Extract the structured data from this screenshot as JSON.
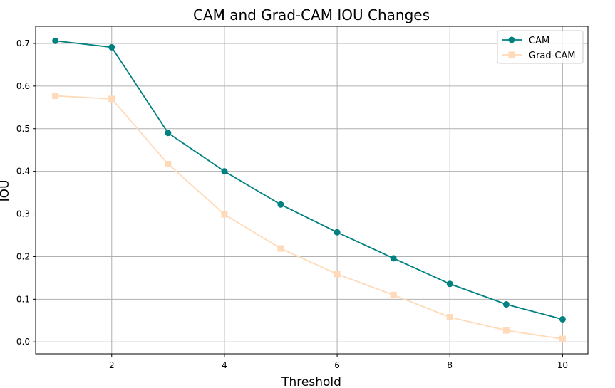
{
  "chart_data": {
    "type": "line",
    "title": "CAM and Grad-CAM IOU Changes",
    "xlabel": "Threshold",
    "ylabel": "IOU",
    "x": [
      1,
      2,
      3,
      4,
      5,
      6,
      7,
      8,
      9,
      10
    ],
    "xlim": [
      0.65,
      10.45
    ],
    "ylim": [
      -0.028,
      0.74
    ],
    "xticks": [
      2,
      4,
      6,
      8,
      10
    ],
    "yticks": [
      0.0,
      0.1,
      0.2,
      0.3,
      0.4,
      0.5,
      0.6,
      0.7
    ],
    "ytick_labels": [
      "0.0",
      "0.1",
      "0.2",
      "0.3",
      "0.4",
      "0.5",
      "0.6",
      "0.7"
    ],
    "grid": true,
    "legend_position": "top-right",
    "series": [
      {
        "name": "CAM",
        "color": "#008080",
        "marker": "circle",
        "values": [
          0.706,
          0.691,
          0.49,
          0.4,
          0.322,
          0.257,
          0.196,
          0.136,
          0.088,
          0.053
        ]
      },
      {
        "name": "Grad-CAM",
        "color": "#FFDAB9",
        "marker": "square",
        "values": [
          0.577,
          0.57,
          0.417,
          0.299,
          0.219,
          0.159,
          0.11,
          0.058,
          0.027,
          0.007
        ]
      }
    ]
  }
}
